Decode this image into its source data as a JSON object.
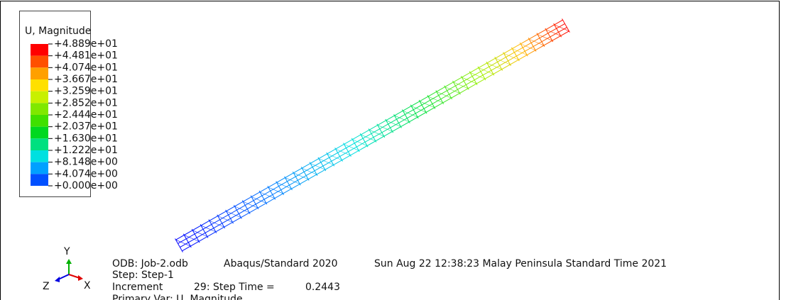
{
  "legend": {
    "title": "U, Magnitude",
    "labels": [
      "+4.889e+01",
      "+4.481e+01",
      "+4.074e+01",
      "+3.667e+01",
      "+3.259e+01",
      "+2.852e+01",
      "+2.444e+01",
      "+2.037e+01",
      "+1.630e+01",
      "+1.222e+01",
      "+8.148e+00",
      "+4.074e+00",
      "+0.000e+00"
    ]
  },
  "info": {
    "odb": "ODB: Job-2.odb",
    "solver": "Abaqus/Standard 2020",
    "date": "Sun Aug 22 12:38:23 Malay Peninsula Standard Time 2021",
    "step": "Step: Step-1",
    "increment": "Increment",
    "step_time_label": "29: Step Time =",
    "step_time": "0.2443",
    "primary_var": "Primary Var: U, Magnitude"
  },
  "triad": {
    "y": "Y",
    "x": "X",
    "z": "Z"
  }
}
